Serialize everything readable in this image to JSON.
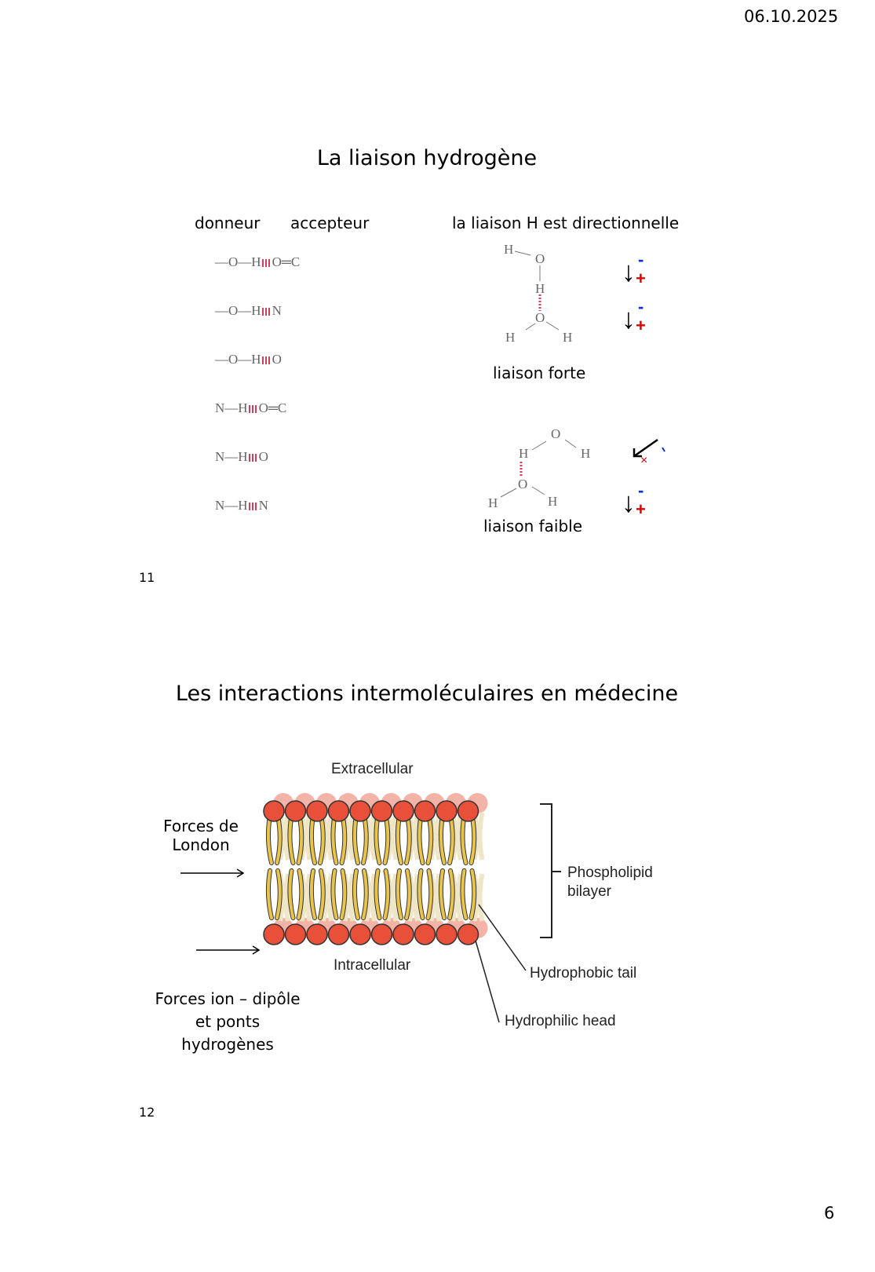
{
  "header": {
    "date": "06.10.2025"
  },
  "slide11": {
    "title": "La liaison hydrogène",
    "col_donor": "donneur",
    "col_acceptor": "accepteur",
    "directional": "la liaison H est directionnelle",
    "rows": [
      {
        "donor": "—O—H",
        "acceptor": "O═C"
      },
      {
        "donor": "—O—H",
        "acceptor": "N"
      },
      {
        "donor": "—O—H",
        "acceptor": "O"
      },
      {
        "donor": "N—H",
        "acceptor": "O═C"
      },
      {
        "donor": "N—H",
        "acceptor": "O"
      },
      {
        "donor": "N—H",
        "acceptor": "N"
      }
    ],
    "strong_label": "liaison forte",
    "weak_label": "liaison faible",
    "atoms": {
      "H": "H",
      "O": "O"
    },
    "signs": {
      "minus": "-",
      "plus": "+",
      "cross": "×"
    },
    "page_number": "11"
  },
  "slide12": {
    "title": "Les interactions intermoléculaires en médecine",
    "extracellular": "Extracellular",
    "intracellular": "Intracellular",
    "london": "Forces de London",
    "ion_dipole": [
      "Forces ion – dipôle",
      "et ponts",
      "hydrogènes"
    ],
    "bilayer": [
      "Phospholipid",
      "bilayer"
    ],
    "tail": "Hydrophobic tail",
    "head": "Hydrophilic head",
    "page_number": "12"
  },
  "footer": {
    "sheet_number": "6"
  },
  "colors": {
    "head": "#e8503a",
    "tail": "#e8c44a",
    "hbond": "#d0405a",
    "minus": "#1030e0",
    "plus": "#e00000"
  }
}
